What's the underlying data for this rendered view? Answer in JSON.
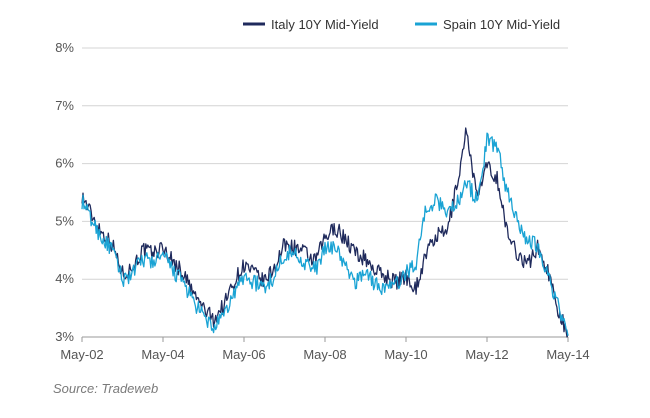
{
  "chart_data": {
    "type": "line",
    "title": "",
    "xlabel": "",
    "ylabel": "",
    "x_ticks": [
      "May-02",
      "May-04",
      "May-06",
      "May-08",
      "May-10",
      "May-12",
      "May-14"
    ],
    "x_range": [
      "May-02",
      "May-14"
    ],
    "y_ticks": [
      "3%",
      "4%",
      "5%",
      "6%",
      "7%",
      "8%"
    ],
    "ylim": [
      3,
      8
    ],
    "grid": true,
    "legend_position": "top-right",
    "x": [
      "May-02",
      "Aug-02",
      "Nov-02",
      "Feb-03",
      "May-03",
      "Aug-03",
      "Nov-03",
      "Feb-04",
      "May-04",
      "Aug-04",
      "Nov-04",
      "Feb-05",
      "May-05",
      "Aug-05",
      "Nov-05",
      "Feb-06",
      "May-06",
      "Aug-06",
      "Nov-06",
      "Feb-07",
      "May-07",
      "Aug-07",
      "Nov-07",
      "Feb-08",
      "May-08",
      "Aug-08",
      "Nov-08",
      "Feb-09",
      "May-09",
      "Aug-09",
      "Nov-09",
      "Feb-10",
      "May-10",
      "Aug-10",
      "Nov-10",
      "Feb-11",
      "May-11",
      "Aug-11",
      "Nov-11",
      "Feb-12",
      "May-12",
      "Aug-12",
      "Nov-12",
      "Feb-13",
      "May-13",
      "Aug-13",
      "Nov-13",
      "Feb-14",
      "May-14"
    ],
    "series": [
      {
        "name": "Italy 10Y Mid-Yield",
        "color": "#1f2a5c",
        "values": [
          5.45,
          5.1,
          4.8,
          4.6,
          4.1,
          4.2,
          4.5,
          4.45,
          4.55,
          4.3,
          4.1,
          3.75,
          3.5,
          3.3,
          3.55,
          3.95,
          4.25,
          4.1,
          3.95,
          4.2,
          4.6,
          4.55,
          4.45,
          4.3,
          4.7,
          4.9,
          4.7,
          4.45,
          4.35,
          4.15,
          4.05,
          3.95,
          4.05,
          3.85,
          4.45,
          4.75,
          4.8,
          5.6,
          6.6,
          5.4,
          5.95,
          5.75,
          4.8,
          4.45,
          4.25,
          4.55,
          4.15,
          3.5,
          3.05
        ]
      },
      {
        "name": "Spain 10Y Mid-Yield",
        "color": "#1aa3d4",
        "values": [
          5.35,
          5.0,
          4.7,
          4.5,
          4.0,
          4.1,
          4.35,
          4.3,
          4.4,
          4.15,
          3.95,
          3.6,
          3.35,
          3.15,
          3.35,
          3.75,
          4.05,
          3.95,
          3.85,
          4.05,
          4.45,
          4.45,
          4.3,
          4.15,
          4.5,
          4.6,
          4.2,
          3.95,
          4.15,
          3.9,
          3.85,
          3.9,
          4.1,
          4.3,
          5.25,
          5.35,
          5.2,
          5.3,
          5.7,
          5.35,
          6.4,
          6.3,
          5.5,
          5.05,
          4.65,
          4.6,
          4.1,
          3.55,
          3.02
        ]
      }
    ]
  },
  "source_text": "Source: Tradeweb"
}
